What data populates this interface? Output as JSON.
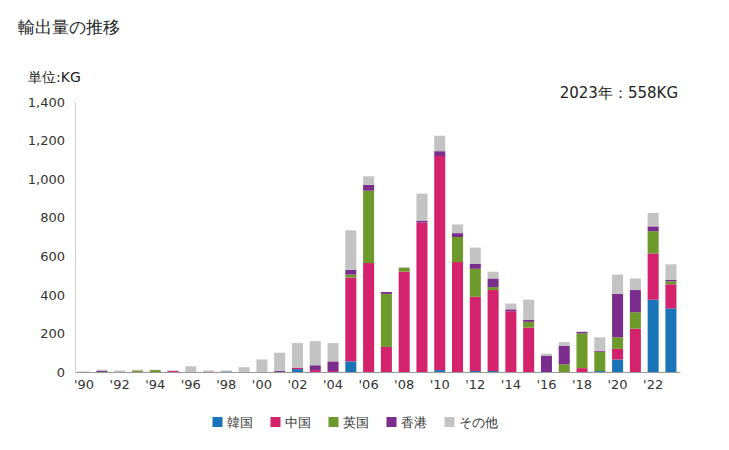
{
  "chart_data": {
    "type": "bar",
    "title": "輸出量の推移",
    "ylabel": "単位:KG",
    "annotations": [
      "2023年：558KG"
    ],
    "stacked": true,
    "grid": false,
    "legend": "bottom",
    "categories": [
      "'90",
      null,
      "'92",
      null,
      "'94",
      null,
      "'96",
      null,
      "'98",
      null,
      "'00",
      null,
      "'02",
      null,
      "'04",
      null,
      "'06",
      null,
      "'08",
      null,
      "'10",
      null,
      "'12",
      null,
      "'14",
      null,
      "'16",
      null,
      "'18",
      null,
      "'20",
      null,
      "'22",
      null
    ],
    "ylim": [
      0,
      1400
    ],
    "yticks": [
      0,
      200,
      400,
      600,
      800,
      {
        "value": 1000,
        "label": "1,000"
      },
      {
        "value": 1200,
        "label": "1,200"
      },
      {
        "value": 1400,
        "label": "1,400"
      }
    ],
    "series": [
      {
        "name": "韓国",
        "color": "#1a74b8",
        "values": [
          0,
          0,
          0,
          0,
          0,
          0,
          0,
          0,
          3,
          0,
          0,
          0,
          15,
          0,
          0,
          55,
          0,
          0,
          0,
          0,
          10,
          0,
          5,
          5,
          0,
          0,
          0,
          0,
          0,
          5,
          65,
          0,
          375,
          330
        ]
      },
      {
        "name": "中国",
        "color": "#d4236c",
        "values": [
          0,
          0,
          0,
          0,
          0,
          5,
          0,
          0,
          0,
          0,
          0,
          0,
          8,
          10,
          5,
          435,
          565,
          130,
          520,
          775,
          1110,
          570,
          385,
          420,
          315,
          230,
          0,
          0,
          20,
          0,
          55,
          225,
          240,
          125
        ]
      },
      {
        "name": "英国",
        "color": "#6e9a2c",
        "values": [
          0,
          0,
          0,
          8,
          10,
          0,
          0,
          0,
          0,
          0,
          0,
          0,
          0,
          0,
          0,
          15,
          375,
          275,
          20,
          0,
          0,
          130,
          145,
          15,
          0,
          30,
          0,
          40,
          180,
          100,
          60,
          85,
          115,
          15
        ]
      },
      {
        "name": "香港",
        "color": "#7a2d8c",
        "values": [
          0,
          5,
          0,
          0,
          0,
          0,
          0,
          0,
          0,
          0,
          0,
          5,
          0,
          25,
          50,
          25,
          30,
          10,
          0,
          10,
          25,
          20,
          25,
          45,
          10,
          10,
          85,
          95,
          8,
          5,
          225,
          115,
          25,
          8
        ]
      },
      {
        "name": "その他",
        "color": "#c3c3c3",
        "values": [
          3,
          7,
          8,
          4,
          2,
          3,
          30,
          8,
          5,
          25,
          65,
          95,
          127,
          125,
          95,
          205,
          45,
          0,
          5,
          140,
          80,
          45,
          85,
          35,
          30,
          105,
          10,
          20,
          2,
          70,
          100,
          60,
          70,
          80
        ]
      }
    ]
  }
}
